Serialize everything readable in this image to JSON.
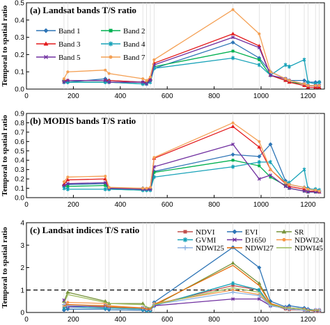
{
  "chart_data": [
    {
      "type": "line",
      "title": "(a) Landsat  bands T/S ratio",
      "xlabel": "",
      "ylabel": "Temporal to spatial ratio",
      "xlim": [
        0,
        1270
      ],
      "ylim": [
        0,
        0.5
      ],
      "xticks": [
        "0",
        "200",
        "400",
        "600",
        "800",
        "1000",
        "1200"
      ],
      "yticks": [
        "0.0",
        "0.1",
        "0.2",
        "0.3",
        "0.4",
        "0.5"
      ],
      "legend_position": "top-right",
      "legend_columns": 2,
      "x": [
        160,
        176,
        336,
        352,
        496,
        512,
        528,
        544,
        880,
        992,
        1040,
        1104,
        1120,
        1184,
        1200,
        1232,
        1248
      ],
      "series": [
        {
          "name": "Band 1",
          "color": "#2e75b6",
          "marker": "diamond",
          "values": [
            0.05,
            0.04,
            0.06,
            0.05,
            0.04,
            0.04,
            0.05,
            0.12,
            0.27,
            0.18,
            0.1,
            0.06,
            0.05,
            0.05,
            0.04,
            0.04,
            0.04
          ]
        },
        {
          "name": "Band 2",
          "color": "#00b050",
          "marker": "square",
          "values": [
            0.04,
            0.04,
            0.04,
            0.04,
            0.03,
            0.03,
            0.05,
            0.13,
            0.22,
            0.17,
            0.08,
            0.05,
            0.04,
            0.03,
            0.02,
            0.02,
            0.02
          ]
        },
        {
          "name": "Band 3",
          "color": "#e31a1c",
          "marker": "triangle",
          "values": [
            0.05,
            0.05,
            0.05,
            0.05,
            0.04,
            0.04,
            0.06,
            0.15,
            0.32,
            0.25,
            0.08,
            0.05,
            0.04,
            0.02,
            0.01,
            0.01,
            0.01
          ]
        },
        {
          "name": "Band 4",
          "color": "#17a2b8",
          "marker": "star",
          "values": [
            0.04,
            0.04,
            0.04,
            0.04,
            0.03,
            0.03,
            0.04,
            0.12,
            0.18,
            0.14,
            0.08,
            0.14,
            0.13,
            0.17,
            0.04,
            0.03,
            0.04
          ]
        },
        {
          "name": "Band 5",
          "color": "#7030a0",
          "marker": "x",
          "values": [
            0.04,
            0.05,
            0.05,
            0.04,
            0.04,
            0.03,
            0.05,
            0.14,
            0.3,
            0.24,
            0.08,
            0.06,
            0.05,
            0.03,
            0.02,
            0.02,
            0.02
          ]
        },
        {
          "name": "Band 7",
          "color": "#f4a054",
          "marker": "circle",
          "values": [
            0.06,
            0.1,
            0.11,
            0.09,
            0.06,
            0.05,
            0.07,
            0.17,
            0.46,
            0.32,
            0.1,
            0.06,
            0.05,
            0.03,
            0.02,
            0.02,
            0.02
          ]
        }
      ]
    },
    {
      "type": "line",
      "title": "(b) MODIS bands T/S ratio",
      "xlabel": "",
      "ylabel": "Temporal to spatial ratio",
      "xlim": [
        0,
        1270
      ],
      "ylim": [
        0,
        0.9
      ],
      "xticks": [
        "0",
        "200",
        "400",
        "600",
        "800",
        "1000",
        "1200"
      ],
      "yticks": [
        "0.0",
        "0.1",
        "0.2",
        "0.3",
        "0.4",
        "0.5",
        "0.6",
        "0.7",
        "0.8",
        "0.9"
      ],
      "x": [
        160,
        176,
        336,
        352,
        496,
        512,
        528,
        544,
        880,
        992,
        1040,
        1104,
        1120,
        1184,
        1200,
        1232,
        1248
      ],
      "series": [
        {
          "name": "Band 1",
          "color": "#2e75b6",
          "marker": "diamond",
          "values": [
            0.13,
            0.14,
            0.15,
            0.1,
            0.1,
            0.09,
            0.09,
            0.28,
            0.46,
            0.44,
            0.57,
            0.18,
            0.14,
            0.11,
            0.1,
            0.08,
            0.07
          ]
        },
        {
          "name": "Band 2",
          "color": "#00b050",
          "marker": "square",
          "values": [
            0.12,
            0.12,
            0.13,
            0.09,
            0.08,
            0.08,
            0.09,
            0.27,
            0.4,
            0.34,
            0.22,
            0.13,
            0.1,
            0.07,
            0.06,
            0.06,
            0.06
          ]
        },
        {
          "name": "Band 3",
          "color": "#e31a1c",
          "marker": "triangle",
          "values": [
            0.14,
            0.19,
            0.2,
            0.1,
            0.09,
            0.09,
            0.1,
            0.42,
            0.76,
            0.54,
            0.3,
            0.15,
            0.12,
            0.09,
            0.07,
            0.07,
            0.06
          ]
        },
        {
          "name": "Band 4",
          "color": "#17a2b8",
          "marker": "star",
          "values": [
            0.1,
            0.09,
            0.09,
            0.09,
            0.08,
            0.08,
            0.08,
            0.22,
            0.33,
            0.38,
            0.38,
            0.16,
            0.16,
            0.3,
            0.09,
            0.09,
            0.08
          ]
        },
        {
          "name": "Band 5",
          "color": "#7030a0",
          "marker": "x",
          "values": [
            0.13,
            0.15,
            0.16,
            0.1,
            0.09,
            0.09,
            0.09,
            0.33,
            0.57,
            0.2,
            0.24,
            0.12,
            0.1,
            0.07,
            0.06,
            0.06,
            0.06
          ]
        },
        {
          "name": "Band 7",
          "color": "#f4a054",
          "marker": "circle",
          "values": [
            0.17,
            0.22,
            0.23,
            0.11,
            0.1,
            0.1,
            0.11,
            0.43,
            0.8,
            0.6,
            0.3,
            0.16,
            0.14,
            0.11,
            0.09,
            0.08,
            0.07
          ]
        }
      ]
    },
    {
      "type": "line",
      "title": "(c) Landsat indices T/S ratio",
      "xlabel": "",
      "ylabel": "Temporal to spatial ratio",
      "xlim": [
        0,
        1270
      ],
      "ylim": [
        0,
        4
      ],
      "xticks": [
        "0",
        "200",
        "400",
        "600",
        "800",
        "1000",
        "1200"
      ],
      "yticks": [
        "0",
        "1",
        "2",
        "3",
        "4"
      ],
      "reference_line": 1,
      "legend_position": "top-right",
      "legend_columns": 3,
      "x": [
        160,
        176,
        336,
        352,
        496,
        512,
        528,
        544,
        880,
        992,
        1040,
        1104,
        1120,
        1184,
        1200,
        1232,
        1248
      ],
      "series": [
        {
          "name": "NDVI",
          "color": "#c0504d",
          "marker": "square",
          "values": [
            0.2,
            0.3,
            0.25,
            0.2,
            0.15,
            0.1,
            0.1,
            0.35,
            1.2,
            1.0,
            0.35,
            0.15,
            0.12,
            0.1,
            0.1,
            0.05,
            0.05
          ]
        },
        {
          "name": "EVI",
          "color": "#2e75b6",
          "marker": "diamond",
          "values": [
            0.1,
            0.15,
            0.15,
            0.12,
            0.1,
            0.08,
            0.08,
            0.45,
            2.9,
            2.0,
            0.5,
            0.25,
            0.3,
            0.2,
            0.15,
            0.1,
            0.1
          ]
        },
        {
          "name": "SR",
          "color": "#77933c",
          "marker": "triangle",
          "values": [
            0.5,
            0.9,
            0.5,
            0.4,
            0.4,
            0.2,
            0.15,
            0.3,
            2.2,
            1.3,
            0.4,
            0.2,
            0.2,
            0.15,
            0.1,
            0.1,
            0.1
          ]
        },
        {
          "name": "GVMI",
          "color": "#17a2b8",
          "marker": "star",
          "values": [
            0.2,
            0.25,
            0.2,
            0.2,
            0.15,
            0.1,
            0.1,
            0.3,
            1.3,
            1.0,
            0.3,
            0.2,
            0.2,
            0.15,
            0.1,
            0.1,
            0.1
          ]
        },
        {
          "name": "D1650",
          "color": "#7030a0",
          "marker": "x",
          "values": [
            0.55,
            0.25,
            0.3,
            0.25,
            0.2,
            0.15,
            0.15,
            0.3,
            0.6,
            0.6,
            0.3,
            0.2,
            0.2,
            0.15,
            0.1,
            0.1,
            0.1
          ]
        },
        {
          "name": "NDWI24",
          "color": "#f79646",
          "marker": "circle",
          "values": [
            0.3,
            0.45,
            0.4,
            0.3,
            0.2,
            0.15,
            0.15,
            0.4,
            1.0,
            0.8,
            0.35,
            0.2,
            0.2,
            0.15,
            0.1,
            0.1,
            0.1
          ]
        },
        {
          "name": "NDWI25",
          "color": "#8db3e2",
          "marker": "plus",
          "values": [
            0.35,
            0.3,
            0.3,
            0.25,
            0.2,
            0.15,
            0.15,
            0.35,
            0.9,
            0.75,
            0.3,
            0.2,
            0.15,
            0.1,
            0.1,
            0.1,
            0.1
          ]
        },
        {
          "name": "NDWI27",
          "color": "#e46c0a",
          "marker": "none",
          "values": [
            0.3,
            0.35,
            0.3,
            0.25,
            0.2,
            0.15,
            0.15,
            0.35,
            2.1,
            1.2,
            0.4,
            0.2,
            0.2,
            0.15,
            0.1,
            0.1,
            0.1
          ]
        },
        {
          "name": "NDWI45",
          "color": "#9bbb59",
          "marker": "none",
          "values": [
            0.4,
            0.8,
            0.45,
            0.4,
            0.35,
            0.25,
            0.2,
            0.35,
            1.1,
            0.9,
            0.35,
            0.2,
            0.2,
            0.15,
            0.1,
            0.1,
            0.1
          ]
        }
      ]
    }
  ]
}
